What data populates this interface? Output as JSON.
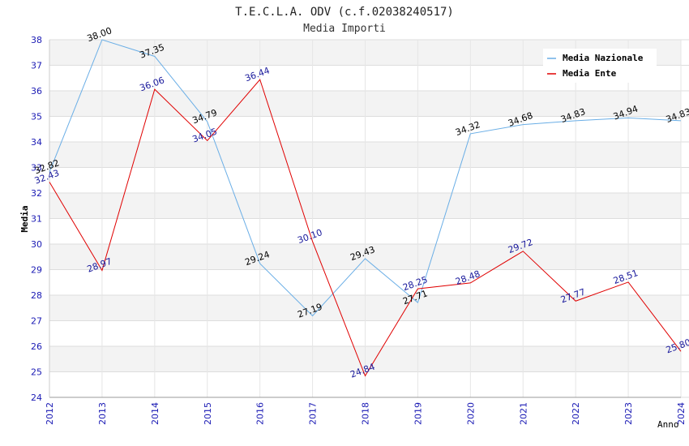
{
  "chart_data": {
    "type": "line",
    "title": "T.E.C.L.A. ODV (c.f.02038240517)",
    "subtitle": "Media Importi",
    "xlabel": "Anno",
    "ylabel": "Media",
    "ylim": [
      24,
      38
    ],
    "yticks": [
      "24",
      "25",
      "26",
      "27",
      "28",
      "29",
      "30",
      "31",
      "32",
      "33",
      "34",
      "35",
      "36",
      "37",
      "38"
    ],
    "categories": [
      "2012",
      "2013",
      "2014",
      "2015",
      "2016",
      "2017",
      "2018",
      "2019",
      "2020",
      "2021",
      "2022",
      "2023",
      "2024"
    ],
    "series": [
      {
        "name": "Media Nazionale",
        "color": "#6aaee6",
        "label_color": "#000000",
        "values": [
          32.82,
          38.0,
          37.35,
          34.79,
          29.24,
          27.19,
          29.43,
          27.71,
          34.32,
          34.68,
          34.83,
          34.94,
          34.83
        ],
        "labels": [
          "32.82",
          "38.00",
          "37.35",
          "34.79",
          "29.24",
          "27.19",
          "29.43",
          "27.71",
          "34.32",
          "34.68",
          "34.83",
          "34.94",
          "34.83"
        ]
      },
      {
        "name": "Media Ente",
        "color": "#e00000",
        "label_color": "#1a1a9c",
        "values": [
          32.43,
          28.97,
          36.06,
          34.05,
          36.44,
          30.1,
          24.84,
          28.25,
          28.48,
          29.72,
          27.77,
          28.51,
          25.8
        ],
        "labels": [
          "32.43",
          "28.97",
          "36.06",
          "34.05",
          "36.44",
          "30.10",
          "24.84",
          "28.25",
          "28.48",
          "29.72",
          "27.77",
          "28.51",
          "25.80"
        ]
      }
    ],
    "legend": "top-right",
    "grid": true
  }
}
